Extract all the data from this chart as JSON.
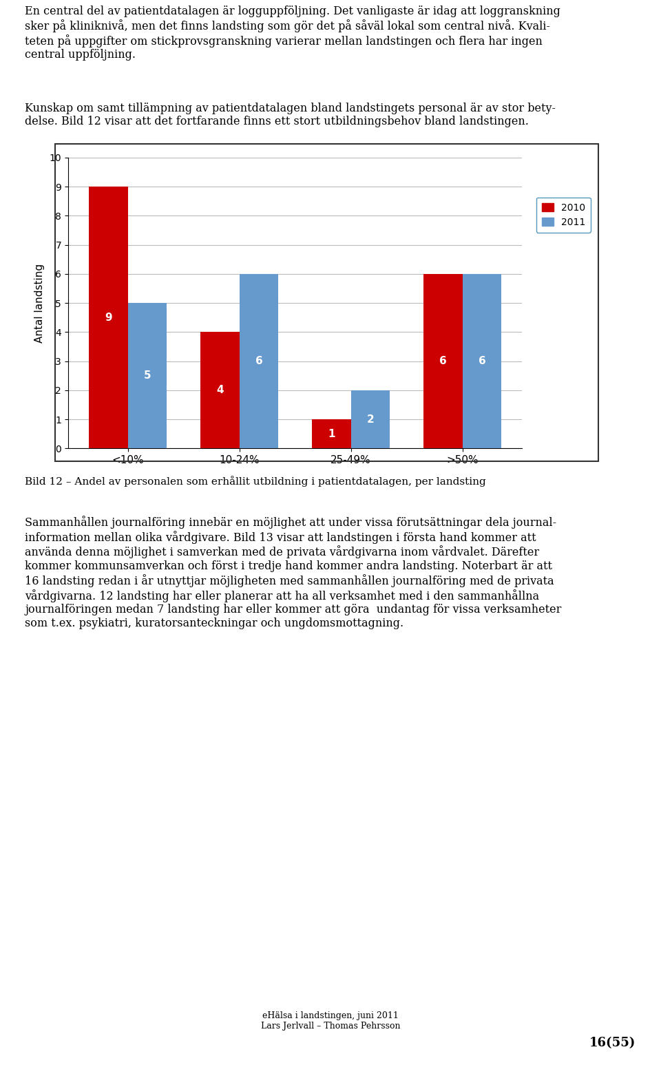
{
  "categories": [
    "<10%",
    "10-24%",
    "25-49%",
    ">50%"
  ],
  "values_2010": [
    9,
    4,
    1,
    6
  ],
  "values_2011": [
    5,
    6,
    2,
    6
  ],
  "color_2010": "#CC0000",
  "color_2011": "#6699CC",
  "ylabel": "Antal landsting",
  "ylim": [
    0,
    10
  ],
  "yticks": [
    0,
    1,
    2,
    3,
    4,
    5,
    6,
    7,
    8,
    9,
    10
  ],
  "legend_2010": "2010",
  "legend_2011": "2011",
  "bar_width": 0.35,
  "caption": "Bild 12 – Andel av personalen som erhållit utbildning i patientdatalagen, per landsting",
  "page_number": "16(55)"
}
